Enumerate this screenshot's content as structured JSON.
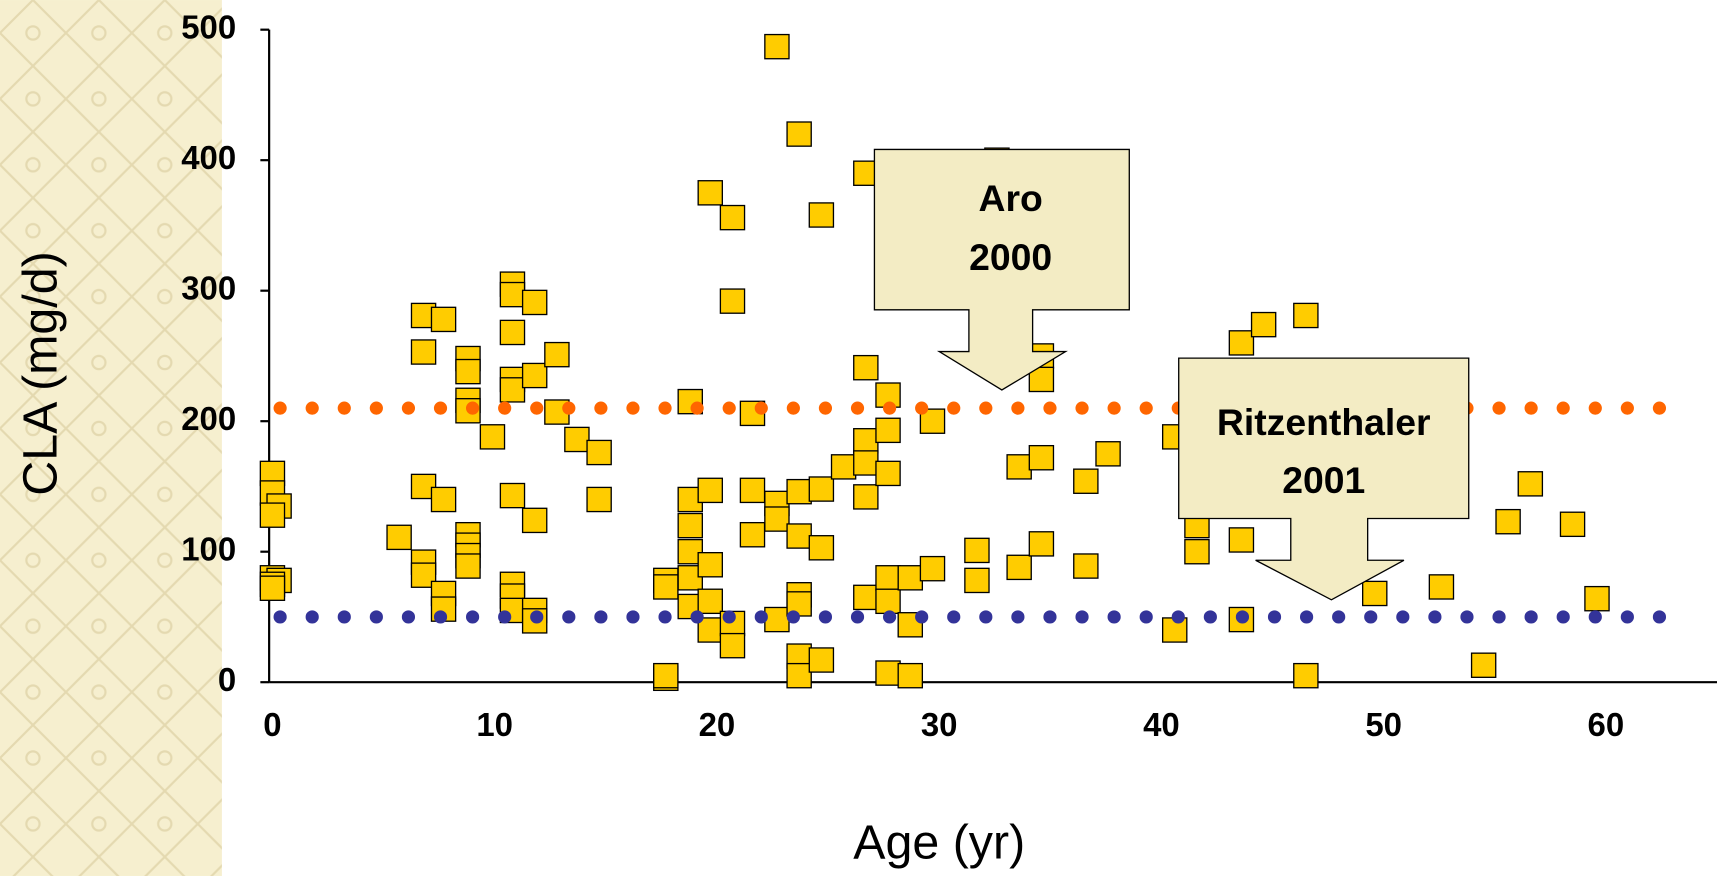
{
  "chart_data": {
    "type": "scatter",
    "x_label": "Age (yr)",
    "y_label": "CLA (mg/d)",
    "color": "#ffcc00",
    "edge_color": "#000000",
    "x": [
      0,
      0,
      0.3,
      0,
      0,
      0.3,
      0,
      0,
      5.7,
      6.8,
      6.8,
      6.8,
      6.8,
      6.8,
      7.7,
      7.7,
      7.7,
      7.7,
      8.8,
      8.8,
      8.8,
      8.8,
      8.8,
      8.8,
      8.8,
      8.8,
      9.9,
      10.8,
      10.8,
      10.8,
      10.8,
      10.8,
      10.8,
      10.8,
      10.8,
      10.8,
      11.8,
      11.8,
      11.8,
      11.8,
      11.8,
      12.8,
      12.8,
      13.7,
      14.7,
      14.7,
      17.7,
      17.7,
      17.7,
      17.7,
      18.8,
      18.8,
      18.8,
      18.8,
      18.8,
      18.8,
      19.7,
      19.7,
      19.7,
      19.7,
      19.7,
      20.7,
      20.7,
      20.7,
      20.7,
      21.6,
      21.6,
      21.6,
      22.7,
      22.7,
      22.7,
      22.7,
      23.7,
      23.7,
      23.7,
      23.7,
      23.7,
      23.7,
      23.7,
      24.7,
      24.7,
      24.7,
      24.7,
      25.7,
      26.7,
      26.7,
      26.7,
      26.7,
      26.7,
      26.7,
      27.7,
      27.7,
      27.7,
      27.7,
      27.7,
      27.7,
      28.7,
      28.7,
      28.7,
      29.7,
      29.7,
      31.7,
      31.7,
      32.6,
      33.6,
      33.6,
      34.6,
      34.6,
      34.6,
      34.6,
      36.6,
      36.6,
      37.6,
      40.6,
      40.6,
      41.6,
      41.6,
      43.6,
      43.6,
      43.6,
      44.6,
      46.5,
      46.5,
      49.6,
      52.6,
      54.5,
      55.6,
      56.6,
      58.5,
      59.6
    ],
    "values": [
      160,
      145,
      135,
      128,
      80,
      78,
      75,
      72,
      111,
      281,
      253,
      150,
      92,
      82,
      278,
      140,
      68,
      56,
      248,
      238,
      216,
      208,
      113,
      105,
      97,
      89,
      188,
      305,
      297,
      268,
      232,
      224,
      143,
      75,
      66,
      55,
      291,
      235,
      124,
      55,
      47,
      251,
      207,
      186,
      176,
      140,
      78,
      73,
      3,
      5,
      215,
      140,
      120,
      100,
      80,
      58,
      375,
      147,
      90,
      62,
      40,
      356,
      292,
      45,
      28,
      206,
      147,
      113,
      487,
      137,
      125,
      48,
      420,
      146,
      112,
      67,
      60,
      20,
      5,
      358,
      148,
      103,
      17,
      165,
      390,
      241,
      185,
      168,
      142,
      65,
      220,
      193,
      160,
      80,
      62,
      7,
      80,
      44,
      5,
      200,
      87,
      101,
      78,
      400,
      165,
      88,
      250,
      232,
      172,
      106,
      154,
      89,
      175,
      188,
      40,
      120,
      100,
      260,
      109,
      48,
      274,
      281,
      5,
      68,
      73,
      13,
      123,
      152,
      121,
      64
    ],
    "xlim": [
      0,
      65
    ],
    "ylim": [
      0,
      500
    ],
    "xticks": [
      0,
      10,
      20,
      30,
      40,
      50,
      60
    ],
    "yticks": [
      0,
      100,
      200,
      300,
      400,
      500
    ],
    "reference_lines": [
      {
        "value": 210,
        "color": "#ff6600"
      },
      {
        "value": 50,
        "color": "#333399"
      }
    ],
    "annotations": [
      {
        "lines": [
          "Aro",
          "2000"
        ]
      },
      {
        "lines": [
          "Ritzenthaler",
          "2001"
        ]
      }
    ]
  }
}
